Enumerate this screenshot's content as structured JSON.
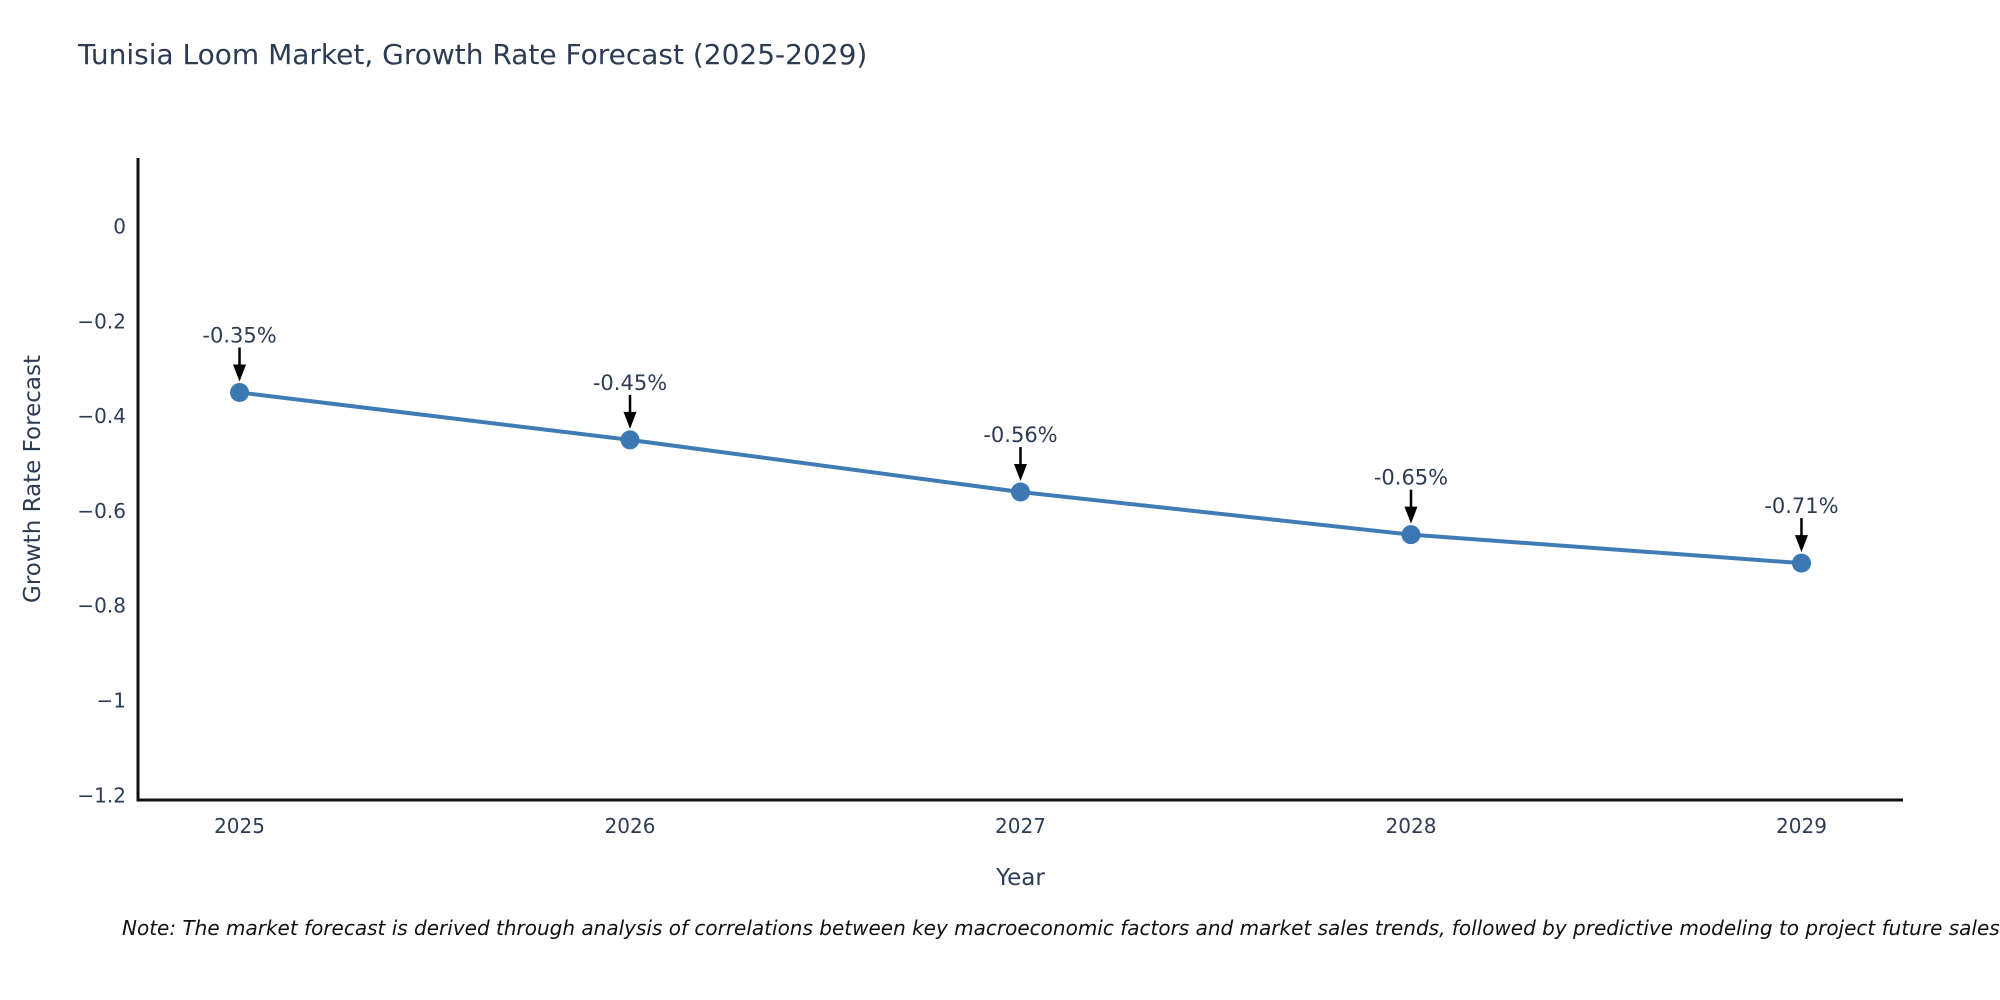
{
  "note": "Note: The market forecast is derived through analysis of correlations between key macroeconomic factors and market sales trends, followed by predictive modeling to project future sales.",
  "chart_data": {
    "type": "line",
    "title": "Tunisia Loom Market, Growth Rate Forecast (2025-2029)",
    "x": [
      2025,
      2026,
      2027,
      2028,
      2029
    ],
    "y": [
      -0.35,
      -0.45,
      -0.56,
      -0.65,
      -0.71
    ],
    "point_labels": [
      "-0.35%",
      "-0.45%",
      "-0.56%",
      "-0.65%",
      "-0.71%"
    ],
    "xlabel": "Year",
    "ylabel": "Growth Rate Forecast",
    "xtick_labels": [
      "2025",
      "2026",
      "2027",
      "2028",
      "2029"
    ],
    "yticks": [
      0,
      -0.2,
      -0.4,
      -0.6,
      -0.8,
      -1,
      -1.2
    ],
    "ytick_labels": [
      "0",
      "−0.2",
      "−0.4",
      "−0.6",
      "−0.8",
      "−1",
      "−1.2"
    ],
    "xlim": [
      2024.74,
      2029.26
    ],
    "ylim": [
      -1.21,
      0.145
    ],
    "grid": false,
    "legend": false,
    "colors": {
      "line": "#3f7cb6",
      "marker": "#3a77b3",
      "annotation_arrow": "#000000",
      "chart_text": "#2d3c55",
      "axis_line": "#111111",
      "title_text": "#2c3a52",
      "note_text": "#111111"
    }
  }
}
